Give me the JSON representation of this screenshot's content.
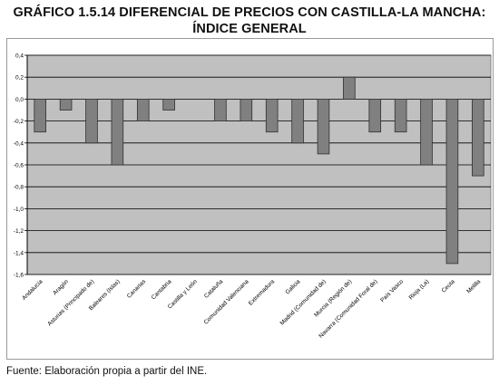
{
  "header": {
    "title_line1": "GRÁFICO 1.5.14 DIFERENCIAL DE PRECIOS CON CASTILLA-LA MANCHA:",
    "title_line2": "ÍNDICE GENERAL"
  },
  "footer": {
    "source": "Fuente: Elaboración propia a partir del INE."
  },
  "colors": {
    "plot_background": "#c0c0c0",
    "bar_fill": "#808080",
    "bar_stroke": "#303030",
    "gridline": "#000000"
  },
  "chart_data": {
    "type": "bar",
    "categories": [
      "Andalucía",
      "Aragón",
      "Asturias (Principado de)",
      "Baleares (Islas)",
      "Canarias",
      "Cantabria",
      "Castilla y León",
      "Cataluña",
      "Comunidad Valenciana",
      "Extremadura",
      "Galicia",
      "Madrid (Comunidad de)",
      "Murcia (Región de)",
      "Navarra (Comunidad Foral de)",
      "País Vasco",
      "Rioja (La)",
      "Ceuta",
      "Melilla"
    ],
    "values": [
      -0.3,
      -0.1,
      -0.4,
      -0.6,
      -0.2,
      -0.1,
      0.0,
      -0.2,
      -0.2,
      -0.3,
      -0.4,
      -0.5,
      0.2,
      -0.3,
      -0.3,
      -0.6,
      -1.5,
      -0.7
    ],
    "ylim": [
      -1.6,
      0.4
    ],
    "yticks": [
      "0,4",
      "0,2",
      "0,0",
      "-0,2",
      "-0,4",
      "-0,6",
      "-0,8",
      "-1,0",
      "-1,2",
      "-1,4",
      "-1,6"
    ],
    "ytick_values": [
      0.4,
      0.2,
      0.0,
      -0.2,
      -0.4,
      -0.6,
      -0.8,
      -1.0,
      -1.2,
      -1.4,
      -1.6
    ],
    "grid": true,
    "legend": "none"
  }
}
